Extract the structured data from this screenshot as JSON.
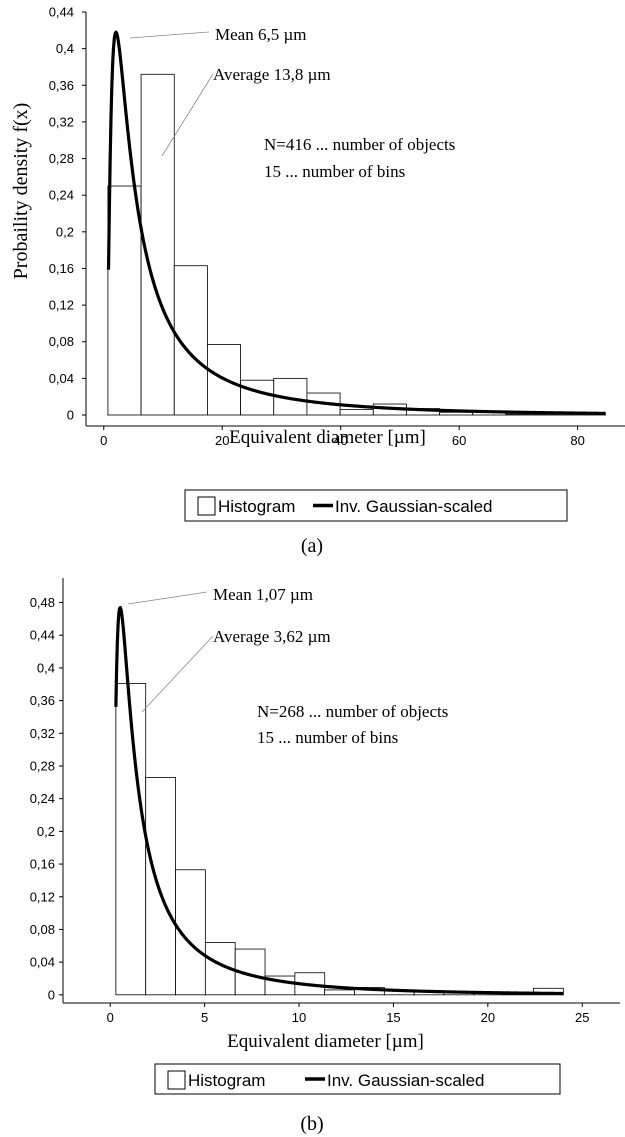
{
  "chart_data": [
    {
      "type": "bar",
      "panel_label": "(a)",
      "xlabel": "Equivalent diameter [µm]",
      "ylabel": "Probaility density f(x)",
      "xlim": [
        -3,
        88
      ],
      "ylim": [
        -0.012,
        0.44
      ],
      "xticks": [
        0,
        20,
        40,
        60,
        80
      ],
      "xtick_labels": [
        "0",
        "20",
        "40",
        "60",
        "80"
      ],
      "yticks": [
        0,
        0.04,
        0.08,
        0.12,
        0.16,
        0.2,
        0.24,
        0.28,
        0.32,
        0.36,
        0.4,
        0.44
      ],
      "ytick_labels": [
        "0",
        "0,04",
        "0,08",
        "0,12",
        "0,16",
        "0,2",
        "0,24",
        "0,28",
        "0,32",
        "0,36",
        "0,4",
        "0,44"
      ],
      "series": [
        {
          "name": "Histogram",
          "type": "histogram",
          "bin_edges": [
            0.7,
            6.3,
            11.9,
            17.5,
            23.1,
            28.7,
            34.3,
            39.9,
            45.5,
            51.1,
            56.7,
            62.3,
            67.9,
            73.5,
            79.1,
            84.7
          ],
          "values": [
            0.25,
            0.372,
            0.163,
            0.077,
            0.038,
            0.04,
            0.024,
            0.006,
            0.012,
            0.007,
            0.003,
            0.004,
            0.001,
            0.001,
            0.002
          ]
        },
        {
          "name": "Inv. Gaussian-scaled",
          "type": "line",
          "mu": 13.8,
          "lambda": 6.3,
          "x_start": 0.8,
          "x_end": 84.7,
          "peak_y": 0.418
        }
      ],
      "annotations": [
        {
          "text": "Mean 6,5 µm",
          "x": 6.5,
          "y": 0.418
        },
        {
          "text": "Average 13,8 µm",
          "x": 13.8,
          "y": 0.3
        },
        {
          "text": "N=416 ... number of objects"
        },
        {
          "text": "15 ... number of bins"
        }
      ],
      "legend": {
        "position": "bottom",
        "entries": [
          "Histogram",
          "Inv. Gaussian-scaled"
        ]
      },
      "grid": false
    },
    {
      "type": "bar",
      "panel_label": "(b)",
      "xlabel": "Equivalent diameter [µm]",
      "ylabel": "",
      "xlim": [
        -2.5,
        27
      ],
      "ylim": [
        -0.01,
        0.51
      ],
      "xticks": [
        0,
        5,
        10,
        15,
        20,
        25
      ],
      "xtick_labels": [
        "0",
        "5",
        "10",
        "15",
        "20",
        "25"
      ],
      "yticks": [
        0,
        0.04,
        0.08,
        0.12,
        0.16,
        0.2,
        0.24,
        0.28,
        0.32,
        0.36,
        0.4,
        0.44,
        0.48
      ],
      "ytick_labels": [
        "0",
        "0,04",
        "0,08",
        "0,12",
        "0,16",
        "0,2",
        "0,24",
        "0,28",
        "0,32",
        "0,36",
        "0,4",
        "0,44",
        "0,48"
      ],
      "series": [
        {
          "name": "Histogram",
          "type": "histogram",
          "bin_edges": [
            0.3,
            1.88,
            3.46,
            5.04,
            6.62,
            8.2,
            9.78,
            11.36,
            12.94,
            14.52,
            16.1,
            17.68,
            19.26,
            20.84,
            22.42,
            24.0
          ],
          "values": [
            0.381,
            0.266,
            0.153,
            0.064,
            0.056,
            0.023,
            0.027,
            0.006,
            0.009,
            0.006,
            0.005,
            0.003,
            0.003,
            0.002,
            0.008
          ]
        },
        {
          "name": "Inv. Gaussian-scaled",
          "type": "line",
          "mu": 3.62,
          "lambda": 1.61,
          "x_start": 0.3,
          "x_end": 24.0,
          "peak_y": 0.474
        }
      ],
      "annotations": [
        {
          "text": "Mean 1,07 µm",
          "x": 1.07,
          "y": 0.474
        },
        {
          "text": "Average 3,62 µm",
          "x": 3.62,
          "y": 0.365
        },
        {
          "text": "N=268 ... number of objects"
        },
        {
          "text": "15 ... number of bins"
        }
      ],
      "legend": {
        "position": "bottom",
        "entries": [
          "Histogram",
          "Inv. Gaussian-scaled"
        ]
      },
      "grid": false
    }
  ]
}
